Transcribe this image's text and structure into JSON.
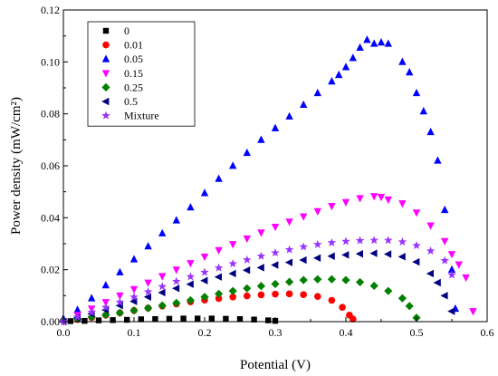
{
  "chart_data": {
    "type": "scatter",
    "xlabel": "Potential (V)",
    "ylabel": "Power density (mW/cm²)",
    "xlim": [
      0.0,
      0.6
    ],
    "ylim": [
      0.0,
      0.12
    ],
    "x_ticks": [
      "0.0",
      "0.1",
      "0.2",
      "0.3",
      "0.4",
      "0.5",
      "0.6"
    ],
    "y_ticks": [
      "0.00",
      "0.02",
      "0.04",
      "0.06",
      "0.08",
      "0.10",
      "0.12"
    ],
    "grid": false,
    "legend_position": "top-left",
    "series": [
      {
        "name": "0",
        "marker": "square",
        "color": "#000000",
        "points": [
          [
            0.01,
            0.0002
          ],
          [
            0.03,
            0.0003
          ],
          [
            0.05,
            0.0005
          ],
          [
            0.07,
            0.0006
          ],
          [
            0.09,
            0.0007
          ],
          [
            0.11,
            0.0009
          ],
          [
            0.13,
            0.001
          ],
          [
            0.15,
            0.0011
          ],
          [
            0.17,
            0.0012
          ],
          [
            0.19,
            0.0012
          ],
          [
            0.21,
            0.0012
          ],
          [
            0.23,
            0.0011
          ],
          [
            0.25,
            0.001
          ],
          [
            0.27,
            0.0008
          ],
          [
            0.29,
            0.0005
          ],
          [
            0.3,
            0.0003
          ]
        ]
      },
      {
        "name": "0.01",
        "marker": "circle",
        "color": "#ff0000",
        "points": [
          [
            0.02,
            0.0008
          ],
          [
            0.04,
            0.0016
          ],
          [
            0.06,
            0.0025
          ],
          [
            0.08,
            0.0034
          ],
          [
            0.1,
            0.0043
          ],
          [
            0.12,
            0.0052
          ],
          [
            0.14,
            0.006
          ],
          [
            0.16,
            0.0068
          ],
          [
            0.18,
            0.0076
          ],
          [
            0.2,
            0.0083
          ],
          [
            0.22,
            0.0089
          ],
          [
            0.24,
            0.0095
          ],
          [
            0.26,
            0.0099
          ],
          [
            0.28,
            0.0103
          ],
          [
            0.3,
            0.0106
          ],
          [
            0.32,
            0.0107
          ],
          [
            0.34,
            0.0104
          ],
          [
            0.36,
            0.0097
          ],
          [
            0.38,
            0.0082
          ],
          [
            0.395,
            0.0055
          ],
          [
            0.405,
            0.0025
          ],
          [
            0.41,
            0.001
          ]
        ]
      },
      {
        "name": "0.05",
        "marker": "triangle-up",
        "color": "#0000ff",
        "points": [
          [
            0.0,
            0.0012
          ],
          [
            0.02,
            0.0045
          ],
          [
            0.04,
            0.009
          ],
          [
            0.06,
            0.014
          ],
          [
            0.08,
            0.019
          ],
          [
            0.1,
            0.024
          ],
          [
            0.12,
            0.029
          ],
          [
            0.14,
            0.034
          ],
          [
            0.16,
            0.039
          ],
          [
            0.18,
            0.044
          ],
          [
            0.2,
            0.0495
          ],
          [
            0.22,
            0.055
          ],
          [
            0.24,
            0.06
          ],
          [
            0.26,
            0.065
          ],
          [
            0.28,
            0.07
          ],
          [
            0.3,
            0.0745
          ],
          [
            0.32,
            0.079
          ],
          [
            0.34,
            0.0835
          ],
          [
            0.36,
            0.088
          ],
          [
            0.38,
            0.0925
          ],
          [
            0.39,
            0.095
          ],
          [
            0.4,
            0.098
          ],
          [
            0.41,
            0.1015
          ],
          [
            0.42,
            0.1055
          ],
          [
            0.43,
            0.1085
          ],
          [
            0.44,
            0.107
          ],
          [
            0.45,
            0.1075
          ],
          [
            0.46,
            0.107
          ],
          [
            0.48,
            0.1
          ],
          [
            0.49,
            0.096
          ],
          [
            0.5,
            0.088
          ],
          [
            0.51,
            0.081
          ],
          [
            0.52,
            0.073
          ],
          [
            0.53,
            0.062
          ],
          [
            0.54,
            0.043
          ],
          [
            0.55,
            0.02
          ],
          [
            0.555,
            0.005
          ]
        ]
      },
      {
        "name": "0.15",
        "marker": "triangle-down",
        "color": "#ff00ff",
        "points": [
          [
            0.0,
            0.0
          ],
          [
            0.02,
            0.0025
          ],
          [
            0.04,
            0.005
          ],
          [
            0.06,
            0.0075
          ],
          [
            0.08,
            0.01
          ],
          [
            0.1,
            0.0125
          ],
          [
            0.12,
            0.015
          ],
          [
            0.14,
            0.0175
          ],
          [
            0.16,
            0.02
          ],
          [
            0.18,
            0.0225
          ],
          [
            0.2,
            0.025
          ],
          [
            0.22,
            0.0275
          ],
          [
            0.24,
            0.0298
          ],
          [
            0.26,
            0.032
          ],
          [
            0.28,
            0.0343
          ],
          [
            0.3,
            0.0365
          ],
          [
            0.32,
            0.0385
          ],
          [
            0.34,
            0.0405
          ],
          [
            0.36,
            0.0425
          ],
          [
            0.38,
            0.0445
          ],
          [
            0.4,
            0.046
          ],
          [
            0.42,
            0.0475
          ],
          [
            0.44,
            0.0483
          ],
          [
            0.45,
            0.048
          ],
          [
            0.46,
            0.047
          ],
          [
            0.48,
            0.0455
          ],
          [
            0.5,
            0.042
          ],
          [
            0.52,
            0.037
          ],
          [
            0.54,
            0.031
          ],
          [
            0.55,
            0.026
          ],
          [
            0.56,
            0.022
          ],
          [
            0.57,
            0.017
          ],
          [
            0.58,
            0.004
          ]
        ]
      },
      {
        "name": "0.25",
        "marker": "diamond",
        "color": "#008000",
        "points": [
          [
            0.0,
            0.0003
          ],
          [
            0.02,
            0.001
          ],
          [
            0.04,
            0.0018
          ],
          [
            0.06,
            0.0026
          ],
          [
            0.08,
            0.0034
          ],
          [
            0.1,
            0.0043
          ],
          [
            0.12,
            0.0052
          ],
          [
            0.14,
            0.0062
          ],
          [
            0.16,
            0.0072
          ],
          [
            0.18,
            0.0082
          ],
          [
            0.2,
            0.0095
          ],
          [
            0.22,
            0.0107
          ],
          [
            0.24,
            0.0118
          ],
          [
            0.26,
            0.0128
          ],
          [
            0.28,
            0.0137
          ],
          [
            0.3,
            0.0145
          ],
          [
            0.32,
            0.0153
          ],
          [
            0.34,
            0.016
          ],
          [
            0.36,
            0.0163
          ],
          [
            0.38,
            0.0163
          ],
          [
            0.4,
            0.016
          ],
          [
            0.42,
            0.0152
          ],
          [
            0.44,
            0.0138
          ],
          [
            0.46,
            0.0118
          ],
          [
            0.48,
            0.009
          ],
          [
            0.49,
            0.006
          ],
          [
            0.5,
            0.0015
          ]
        ]
      },
      {
        "name": "0.5",
        "marker": "triangle-left",
        "color": "#000080",
        "points": [
          [
            0.0,
            0.0
          ],
          [
            0.02,
            0.0015
          ],
          [
            0.04,
            0.003
          ],
          [
            0.06,
            0.0045
          ],
          [
            0.08,
            0.0062
          ],
          [
            0.1,
            0.0078
          ],
          [
            0.12,
            0.0095
          ],
          [
            0.14,
            0.0112
          ],
          [
            0.16,
            0.0128
          ],
          [
            0.18,
            0.0144
          ],
          [
            0.2,
            0.0158
          ],
          [
            0.22,
            0.0172
          ],
          [
            0.24,
            0.0185
          ],
          [
            0.26,
            0.0198
          ],
          [
            0.28,
            0.0208
          ],
          [
            0.3,
            0.0218
          ],
          [
            0.32,
            0.0228
          ],
          [
            0.34,
            0.0237
          ],
          [
            0.36,
            0.0245
          ],
          [
            0.38,
            0.0252
          ],
          [
            0.4,
            0.0257
          ],
          [
            0.42,
            0.0261
          ],
          [
            0.44,
            0.0263
          ],
          [
            0.46,
            0.026
          ],
          [
            0.48,
            0.025
          ],
          [
            0.5,
            0.023
          ],
          [
            0.52,
            0.0185
          ],
          [
            0.53,
            0.015
          ],
          [
            0.54,
            0.01
          ],
          [
            0.55,
            0.004
          ]
        ]
      },
      {
        "name": "Mixture",
        "marker": "star",
        "color": "#9933ff",
        "points": [
          [
            0.0,
            0.0
          ],
          [
            0.02,
            0.0018
          ],
          [
            0.04,
            0.0036
          ],
          [
            0.06,
            0.0055
          ],
          [
            0.08,
            0.0075
          ],
          [
            0.1,
            0.0095
          ],
          [
            0.12,
            0.0115
          ],
          [
            0.14,
            0.0135
          ],
          [
            0.16,
            0.0155
          ],
          [
            0.18,
            0.0173
          ],
          [
            0.2,
            0.019
          ],
          [
            0.22,
            0.0207
          ],
          [
            0.24,
            0.0223
          ],
          [
            0.26,
            0.0238
          ],
          [
            0.28,
            0.0252
          ],
          [
            0.3,
            0.0265
          ],
          [
            0.32,
            0.0277
          ],
          [
            0.34,
            0.0288
          ],
          [
            0.36,
            0.0297
          ],
          [
            0.38,
            0.0304
          ],
          [
            0.4,
            0.0309
          ],
          [
            0.42,
            0.0312
          ],
          [
            0.44,
            0.0313
          ],
          [
            0.46,
            0.0313
          ],
          [
            0.48,
            0.0307
          ],
          [
            0.5,
            0.0293
          ],
          [
            0.52,
            0.0272
          ],
          [
            0.54,
            0.0235
          ],
          [
            0.55,
            0.018
          ]
        ]
      }
    ]
  }
}
